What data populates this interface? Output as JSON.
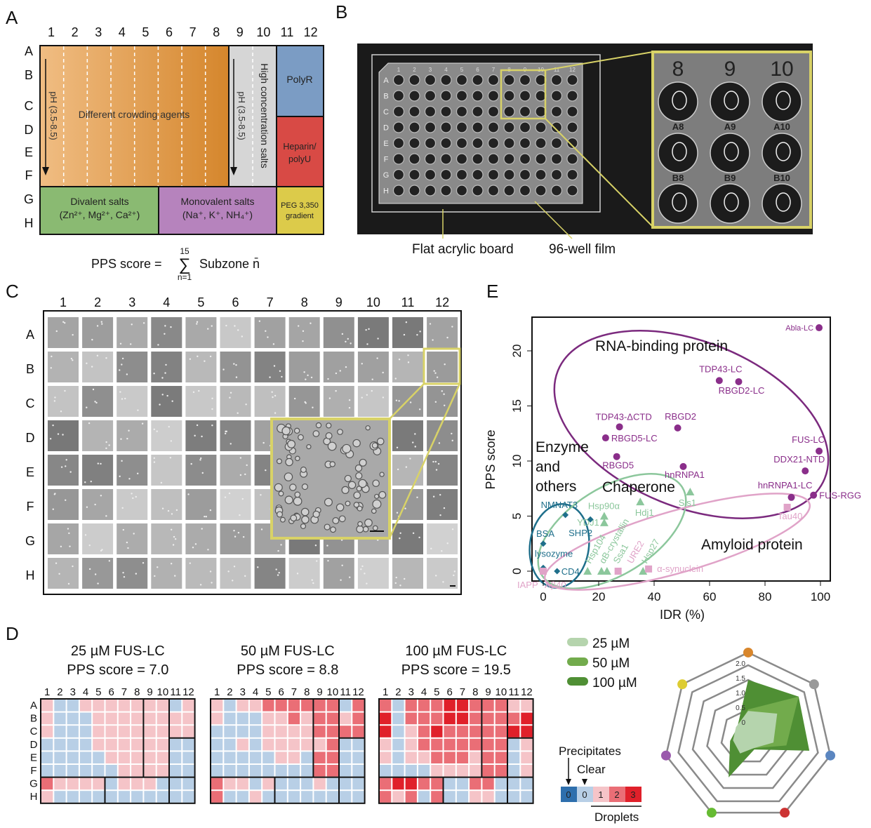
{
  "panels": {
    "a": "A",
    "b": "B",
    "c": "C",
    "d": "D",
    "e": "E"
  },
  "plate": {
    "columns": [
      "1",
      "2",
      "3",
      "4",
      "5",
      "6",
      "7",
      "8",
      "9",
      "10",
      "11",
      "12"
    ],
    "rows": [
      "A",
      "B",
      "C",
      "D",
      "E",
      "F",
      "G",
      "H"
    ]
  },
  "panel_a": {
    "crowding": "Different crowding agents",
    "ph_left": "pH (3.5-8.5)",
    "ph_right": "pH (3.5-8.5)",
    "high_salt": "High concentration salts",
    "polyr": "PolyR",
    "heparin": [
      "Heparin/",
      "polyU"
    ],
    "divalent": [
      "Divalent salts",
      "(Zn²⁺, Mg²⁺, Ca²⁺)"
    ],
    "monovalent": [
      "Monovalent salts",
      "(Na⁺, K⁺, NH₄⁺)"
    ],
    "peg": [
      "PEG 3,350",
      "gradient"
    ],
    "formula": {
      "lhs": "PPS score =",
      "sum": "∑",
      "upper": "15",
      "lower": "n=1",
      "rhs": "Subzone n̄"
    },
    "colors": {
      "crowding_light": "#f0bd83",
      "crowding_dark": "#d5862c",
      "salt": "#d6d6d6",
      "polyr": "#7b9cc4",
      "heparin": "#d84a45",
      "divalent": "#8aba72",
      "monovalent": "#b683bd",
      "peg": "#dccb4a"
    }
  },
  "panel_b": {
    "inset_columns": [
      "8",
      "9",
      "10"
    ],
    "inset_wells": [
      "A8",
      "A9",
      "A10",
      "B8",
      "B9",
      "B10"
    ],
    "callouts": [
      "Flat acrylic board",
      "96-well film"
    ],
    "highlight_color": "#d8d267"
  },
  "chart_data": [
    {
      "type": "heatmap",
      "panel": "D",
      "title": "25 µM FUS-LC",
      "subtitle": "PPS score = 7.0",
      "rows": [
        "A",
        "B",
        "C",
        "D",
        "E",
        "F",
        "G",
        "H"
      ],
      "columns": [
        "1",
        "2",
        "3",
        "4",
        "5",
        "6",
        "7",
        "8",
        "9",
        "10",
        "11",
        "12"
      ],
      "values": [
        [
          1,
          0,
          0,
          1,
          1,
          1,
          1,
          1,
          1,
          1,
          0,
          1
        ],
        [
          1,
          0,
          0,
          0,
          1,
          1,
          1,
          1,
          1,
          1,
          1,
          1
        ],
        [
          1,
          0,
          0,
          0,
          1,
          1,
          1,
          1,
          1,
          1,
          1,
          1
        ],
        [
          0,
          0,
          0,
          0,
          1,
          1,
          1,
          1,
          1,
          1,
          0,
          0
        ],
        [
          0,
          0,
          0,
          0,
          0,
          1,
          1,
          1,
          1,
          1,
          0,
          0
        ],
        [
          0,
          0,
          0,
          0,
          0,
          0,
          1,
          1,
          1,
          1,
          0,
          0
        ],
        [
          2,
          1,
          1,
          1,
          1,
          0,
          1,
          1,
          1,
          0,
          0,
          0
        ],
        [
          1,
          0,
          0,
          0,
          0,
          0,
          0,
          0,
          0,
          0,
          0,
          0
        ]
      ]
    },
    {
      "type": "heatmap",
      "panel": "D",
      "title": "50 µM FUS-LC",
      "subtitle": "PPS score = 8.8",
      "rows": [
        "A",
        "B",
        "C",
        "D",
        "E",
        "F",
        "G",
        "H"
      ],
      "columns": [
        "1",
        "2",
        "3",
        "4",
        "5",
        "6",
        "7",
        "8",
        "9",
        "10",
        "11",
        "12"
      ],
      "values": [
        [
          1,
          0,
          1,
          1,
          2,
          2,
          2,
          2,
          2,
          2,
          0,
          2
        ],
        [
          1,
          0,
          0,
          0,
          1,
          1,
          2,
          1,
          2,
          2,
          1,
          2
        ],
        [
          0,
          0,
          0,
          0,
          1,
          1,
          1,
          1,
          2,
          2,
          2,
          2
        ],
        [
          0,
          0,
          1,
          0,
          1,
          1,
          1,
          1,
          1,
          2,
          0,
          0
        ],
        [
          0,
          0,
          0,
          0,
          0,
          1,
          1,
          0,
          2,
          2,
          0,
          0
        ],
        [
          0,
          0,
          0,
          0,
          0,
          0,
          0,
          0,
          2,
          2,
          0,
          0
        ],
        [
          2,
          1,
          1,
          0,
          1,
          0,
          0,
          0,
          1,
          0,
          0,
          0
        ],
        [
          2,
          0,
          0,
          1,
          0,
          0,
          0,
          0,
          0,
          0,
          0,
          0
        ]
      ]
    },
    {
      "type": "heatmap",
      "panel": "D",
      "title": "100 µM FUS-LC",
      "subtitle": "PPS score = 19.5",
      "rows": [
        "A",
        "B",
        "C",
        "D",
        "E",
        "F",
        "G",
        "H"
      ],
      "columns": [
        "1",
        "2",
        "3",
        "4",
        "5",
        "6",
        "7",
        "8",
        "9",
        "10",
        "11",
        "12"
      ],
      "values": [
        [
          2,
          0,
          2,
          2,
          2,
          3,
          3,
          2,
          2,
          2,
          1,
          1
        ],
        [
          3,
          0,
          2,
          2,
          2,
          3,
          3,
          2,
          2,
          2,
          2,
          3
        ],
        [
          3,
          0,
          1,
          2,
          3,
          2,
          2,
          2,
          2,
          2,
          3,
          3
        ],
        [
          1,
          0,
          1,
          2,
          2,
          2,
          2,
          2,
          2,
          2,
          0,
          1
        ],
        [
          1,
          0,
          1,
          1,
          2,
          2,
          2,
          1,
          2,
          2,
          0,
          1
        ],
        [
          0,
          0,
          0,
          0,
          1,
          1,
          1,
          1,
          2,
          2,
          0,
          1
        ],
        [
          2,
          3,
          3,
          2,
          2,
          0,
          0,
          2,
          2,
          0,
          0,
          0
        ],
        [
          2,
          1,
          2,
          0,
          2,
          0,
          0,
          1,
          1,
          0,
          0,
          0
        ]
      ]
    },
    {
      "type": "radar",
      "panel": "D",
      "axis_colors": [
        "#d8862c",
        "#999999",
        "#5b86c0",
        "#cc3333",
        "#66bb33",
        "#9a5aac",
        "#ddcc33"
      ],
      "ticks": [
        "0",
        "0.5",
        "1.0",
        "1.5",
        "2.0"
      ],
      "series": [
        {
          "name": "25 µM",
          "color": "#b5d4ad",
          "values": [
            0.45,
            0.83,
            0.45,
            0.0,
            0.2,
            0.1,
            0.1
          ]
        },
        {
          "name": "50 µM",
          "color": "#72ab4c",
          "values": [
            0.5,
            1.76,
            0.9,
            0.0,
            0.05,
            0.1,
            0.05
          ]
        },
        {
          "name": "100 µM",
          "color": "#4f8f34",
          "values": [
            1.5,
            1.76,
            1.7,
            0.05,
            1.1,
            0.2,
            0.05
          ]
        }
      ]
    },
    {
      "type": "scatter",
      "panel": "E",
      "xlabel": "IDR (%)",
      "ylabel": "PPS score",
      "xlim": [
        -4,
        103
      ],
      "ylim": [
        -1,
        23
      ],
      "xticks": [
        0,
        20,
        40,
        60,
        80,
        100
      ],
      "yticks": [
        0,
        5,
        10,
        15,
        20
      ],
      "groups": [
        {
          "name": "RNA-binding protein",
          "color": "#8a2e8a",
          "marker": "circle"
        },
        {
          "name": "Chaperone",
          "color": "#8cc79c",
          "marker": "triangle"
        },
        {
          "name": "Enzyme and others",
          "color": "#1f6f8b",
          "marker": "diamond"
        },
        {
          "name": "Amyloid protein",
          "color": "#e0a3c8",
          "marker": "square"
        }
      ],
      "points": [
        {
          "label": "Abla-LC",
          "group": 0,
          "x": 99.5,
          "y": 22.1
        },
        {
          "label": "TDP43-LC",
          "group": 0,
          "x": 63.5,
          "y": 17.3
        },
        {
          "label": "RBGD2-LC",
          "group": 0,
          "x": 70.5,
          "y": 17.2
        },
        {
          "label": "TDP43-ΔCTD",
          "group": 0,
          "x": 27.5,
          "y": 13.1
        },
        {
          "label": "RBGD2",
          "group": 0,
          "x": 48.5,
          "y": 13.0
        },
        {
          "label": "RBGD5-LC",
          "group": 0,
          "x": 22.5,
          "y": 12.1
        },
        {
          "label": "RBGD5",
          "group": 0,
          "x": 26.5,
          "y": 10.4
        },
        {
          "label": "hnRNPA1",
          "group": 0,
          "x": 50.5,
          "y": 9.5
        },
        {
          "label": "FUS-LC",
          "group": 0,
          "x": 99.5,
          "y": 10.9
        },
        {
          "label": "DDX21-NTD",
          "group": 0,
          "x": 94.5,
          "y": 9.1
        },
        {
          "label": "hnRNPA1-LC",
          "group": 0,
          "x": 89.5,
          "y": 6.7
        },
        {
          "label": "FUS-RGG",
          "group": 0,
          "x": 97.5,
          "y": 6.9
        },
        {
          "label": "Hsp90α",
          "group": 1,
          "x": 22,
          "y": 5.0
        },
        {
          "label": "YDJ1",
          "group": 1,
          "x": 22,
          "y": 4.4
        },
        {
          "label": "Hdj1",
          "group": 1,
          "x": 35,
          "y": 6.3
        },
        {
          "label": "Sis1",
          "group": 1,
          "x": 53,
          "y": 7.2
        },
        {
          "label": "Hsp104",
          "group": 1,
          "x": 16,
          "y": 0
        },
        {
          "label": "αB-crystallin",
          "group": 1,
          "x": 21,
          "y": 0
        },
        {
          "label": "Ssa1",
          "group": 1,
          "x": 23,
          "y": 0
        },
        {
          "label": "Hsp27",
          "group": 1,
          "x": 36,
          "y": 0
        },
        {
          "label": "NMNAT3",
          "group": 2,
          "x": 8,
          "y": 5.1
        },
        {
          "label": "SHP2",
          "group": 2,
          "x": 17,
          "y": 4.7
        },
        {
          "label": "BSA",
          "group": 2,
          "x": 0,
          "y": 2.5
        },
        {
          "label": "lysozyme",
          "group": 2,
          "x": 0,
          "y": 0.3
        },
        {
          "label": "CD4",
          "group": 2,
          "x": 5,
          "y": 0
        },
        {
          "label": "Tau40",
          "group": 3,
          "x": 88,
          "y": 5.8
        },
        {
          "label": "IAPP",
          "group": 3,
          "x": 0,
          "y": 0
        },
        {
          "label": "Aβ40",
          "group": 3,
          "x": 0,
          "y": 0
        },
        {
          "label": "URE2",
          "group": 3,
          "x": 27,
          "y": 0
        },
        {
          "label": "α-synuclein",
          "group": 3,
          "x": 38,
          "y": 0.2
        }
      ]
    }
  ],
  "panel_d": {
    "legend": [
      "25 µM",
      "50 µM",
      "100 µM"
    ],
    "colorbar": {
      "labels": [
        "0",
        "0",
        "1",
        "2",
        "3"
      ],
      "colors": [
        "#2e6fad",
        "#b8cfe6",
        "#f5c4c8",
        "#ea6e76",
        "#e0202a"
      ],
      "precipitates": "Precipitates",
      "clear": "Clear",
      "droplets": "Droplets"
    }
  },
  "panel_e": {
    "group_labels": {
      "rbp": "RNA-binding protein",
      "enzyme": [
        "Enzyme",
        "and",
        "others"
      ],
      "chaperone": "Chaperone",
      "amyloid": "Amyloid protein"
    }
  }
}
